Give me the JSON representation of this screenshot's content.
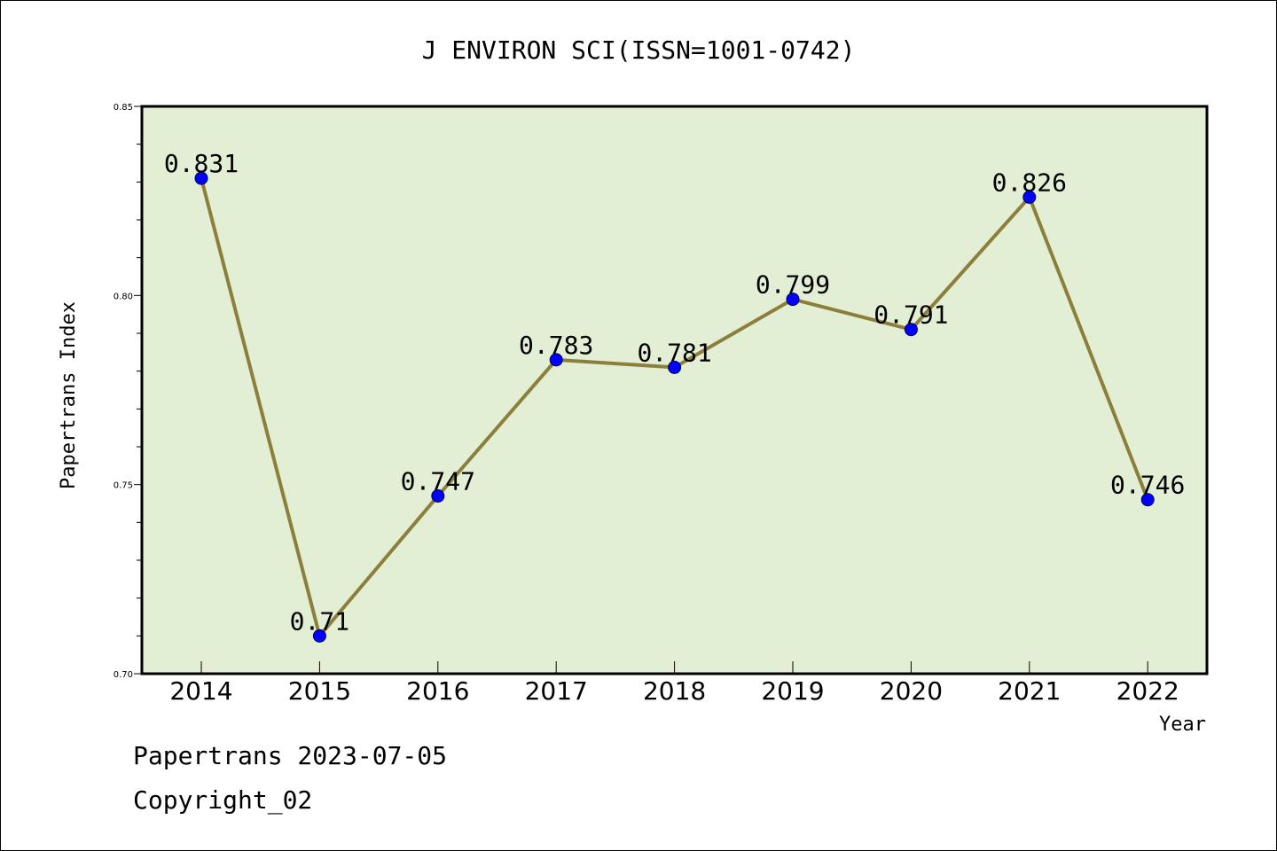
{
  "chart_data": {
    "type": "line",
    "title": "J ENVIRON SCI(ISSN=1001-0742)",
    "xlabel": "Year",
    "ylabel": "Papertrans Index",
    "categories": [
      "2014",
      "2015",
      "2016",
      "2017",
      "2018",
      "2019",
      "2020",
      "2021",
      "2022"
    ],
    "series": [
      {
        "values": [
          0.831,
          0.71,
          0.747,
          0.783,
          0.781,
          0.799,
          0.791,
          0.826,
          0.746
        ],
        "labels": [
          "0.831",
          "0.71",
          "0.747",
          "0.783",
          "0.781",
          "0.799",
          "0.791",
          "0.826",
          "0.746"
        ]
      }
    ],
    "ylim": [
      0.7,
      0.85
    ],
    "yticks": [
      "0.70",
      "0.75",
      "0.80",
      "0.85"
    ],
    "grid": false,
    "colors": {
      "plot_background": "#e2efd4",
      "line": "#8c7f3c",
      "marker": "#0000ff"
    }
  },
  "footer": {
    "date_line": "Papertrans 2023-07-05",
    "copyright_line": "Copyright_02"
  }
}
